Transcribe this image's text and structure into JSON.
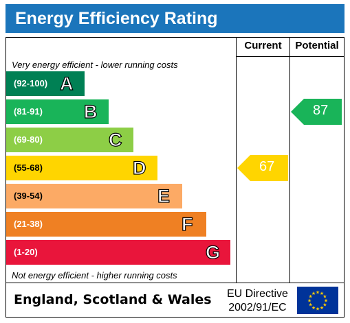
{
  "title": "Energy Efficiency Rating",
  "columns": {
    "current": "Current",
    "potential": "Potential"
  },
  "top_note": "Very energy efficient - lower running costs",
  "bottom_note": "Not energy efficient - higher running costs",
  "bands": [
    {
      "letter": "A",
      "range": "(92-100)",
      "color": "#008054"
    },
    {
      "letter": "B",
      "range": "(81-91)",
      "color": "#19b459"
    },
    {
      "letter": "C",
      "range": "(69-80)",
      "color": "#8dce46"
    },
    {
      "letter": "D",
      "range": "(55-68)",
      "color": "#ffd500"
    },
    {
      "letter": "E",
      "range": "(39-54)",
      "color": "#fcaa65"
    },
    {
      "letter": "F",
      "range": "(21-38)",
      "color": "#ef8023"
    },
    {
      "letter": "G",
      "range": "(1-20)",
      "color": "#e9153b"
    }
  ],
  "chart_data": {
    "type": "bar",
    "title": "Energy Efficiency Rating",
    "categories": [
      "A",
      "B",
      "C",
      "D",
      "E",
      "F",
      "G"
    ],
    "ranges": [
      "(92-100)",
      "(81-91)",
      "(69-80)",
      "(55-68)",
      "(39-54)",
      "(21-38)",
      "(1-20)"
    ],
    "series": [
      {
        "name": "Current",
        "value": 67,
        "band": "D",
        "color": "#ffd500"
      },
      {
        "name": "Potential",
        "value": 87,
        "band": "B",
        "color": "#19b459"
      }
    ]
  },
  "current": {
    "value": "67",
    "band": "D",
    "color": "#ffd500"
  },
  "potential": {
    "value": "87",
    "band": "B",
    "color": "#19b459"
  },
  "footer": {
    "country": "England, Scotland & Wales",
    "directive_line1": "EU Directive",
    "directive_line2": "2002/91/EC"
  },
  "colors": {
    "title_bar": "#1b75bb",
    "eu_flag": "#003399",
    "eu_star": "#ffcc00"
  }
}
